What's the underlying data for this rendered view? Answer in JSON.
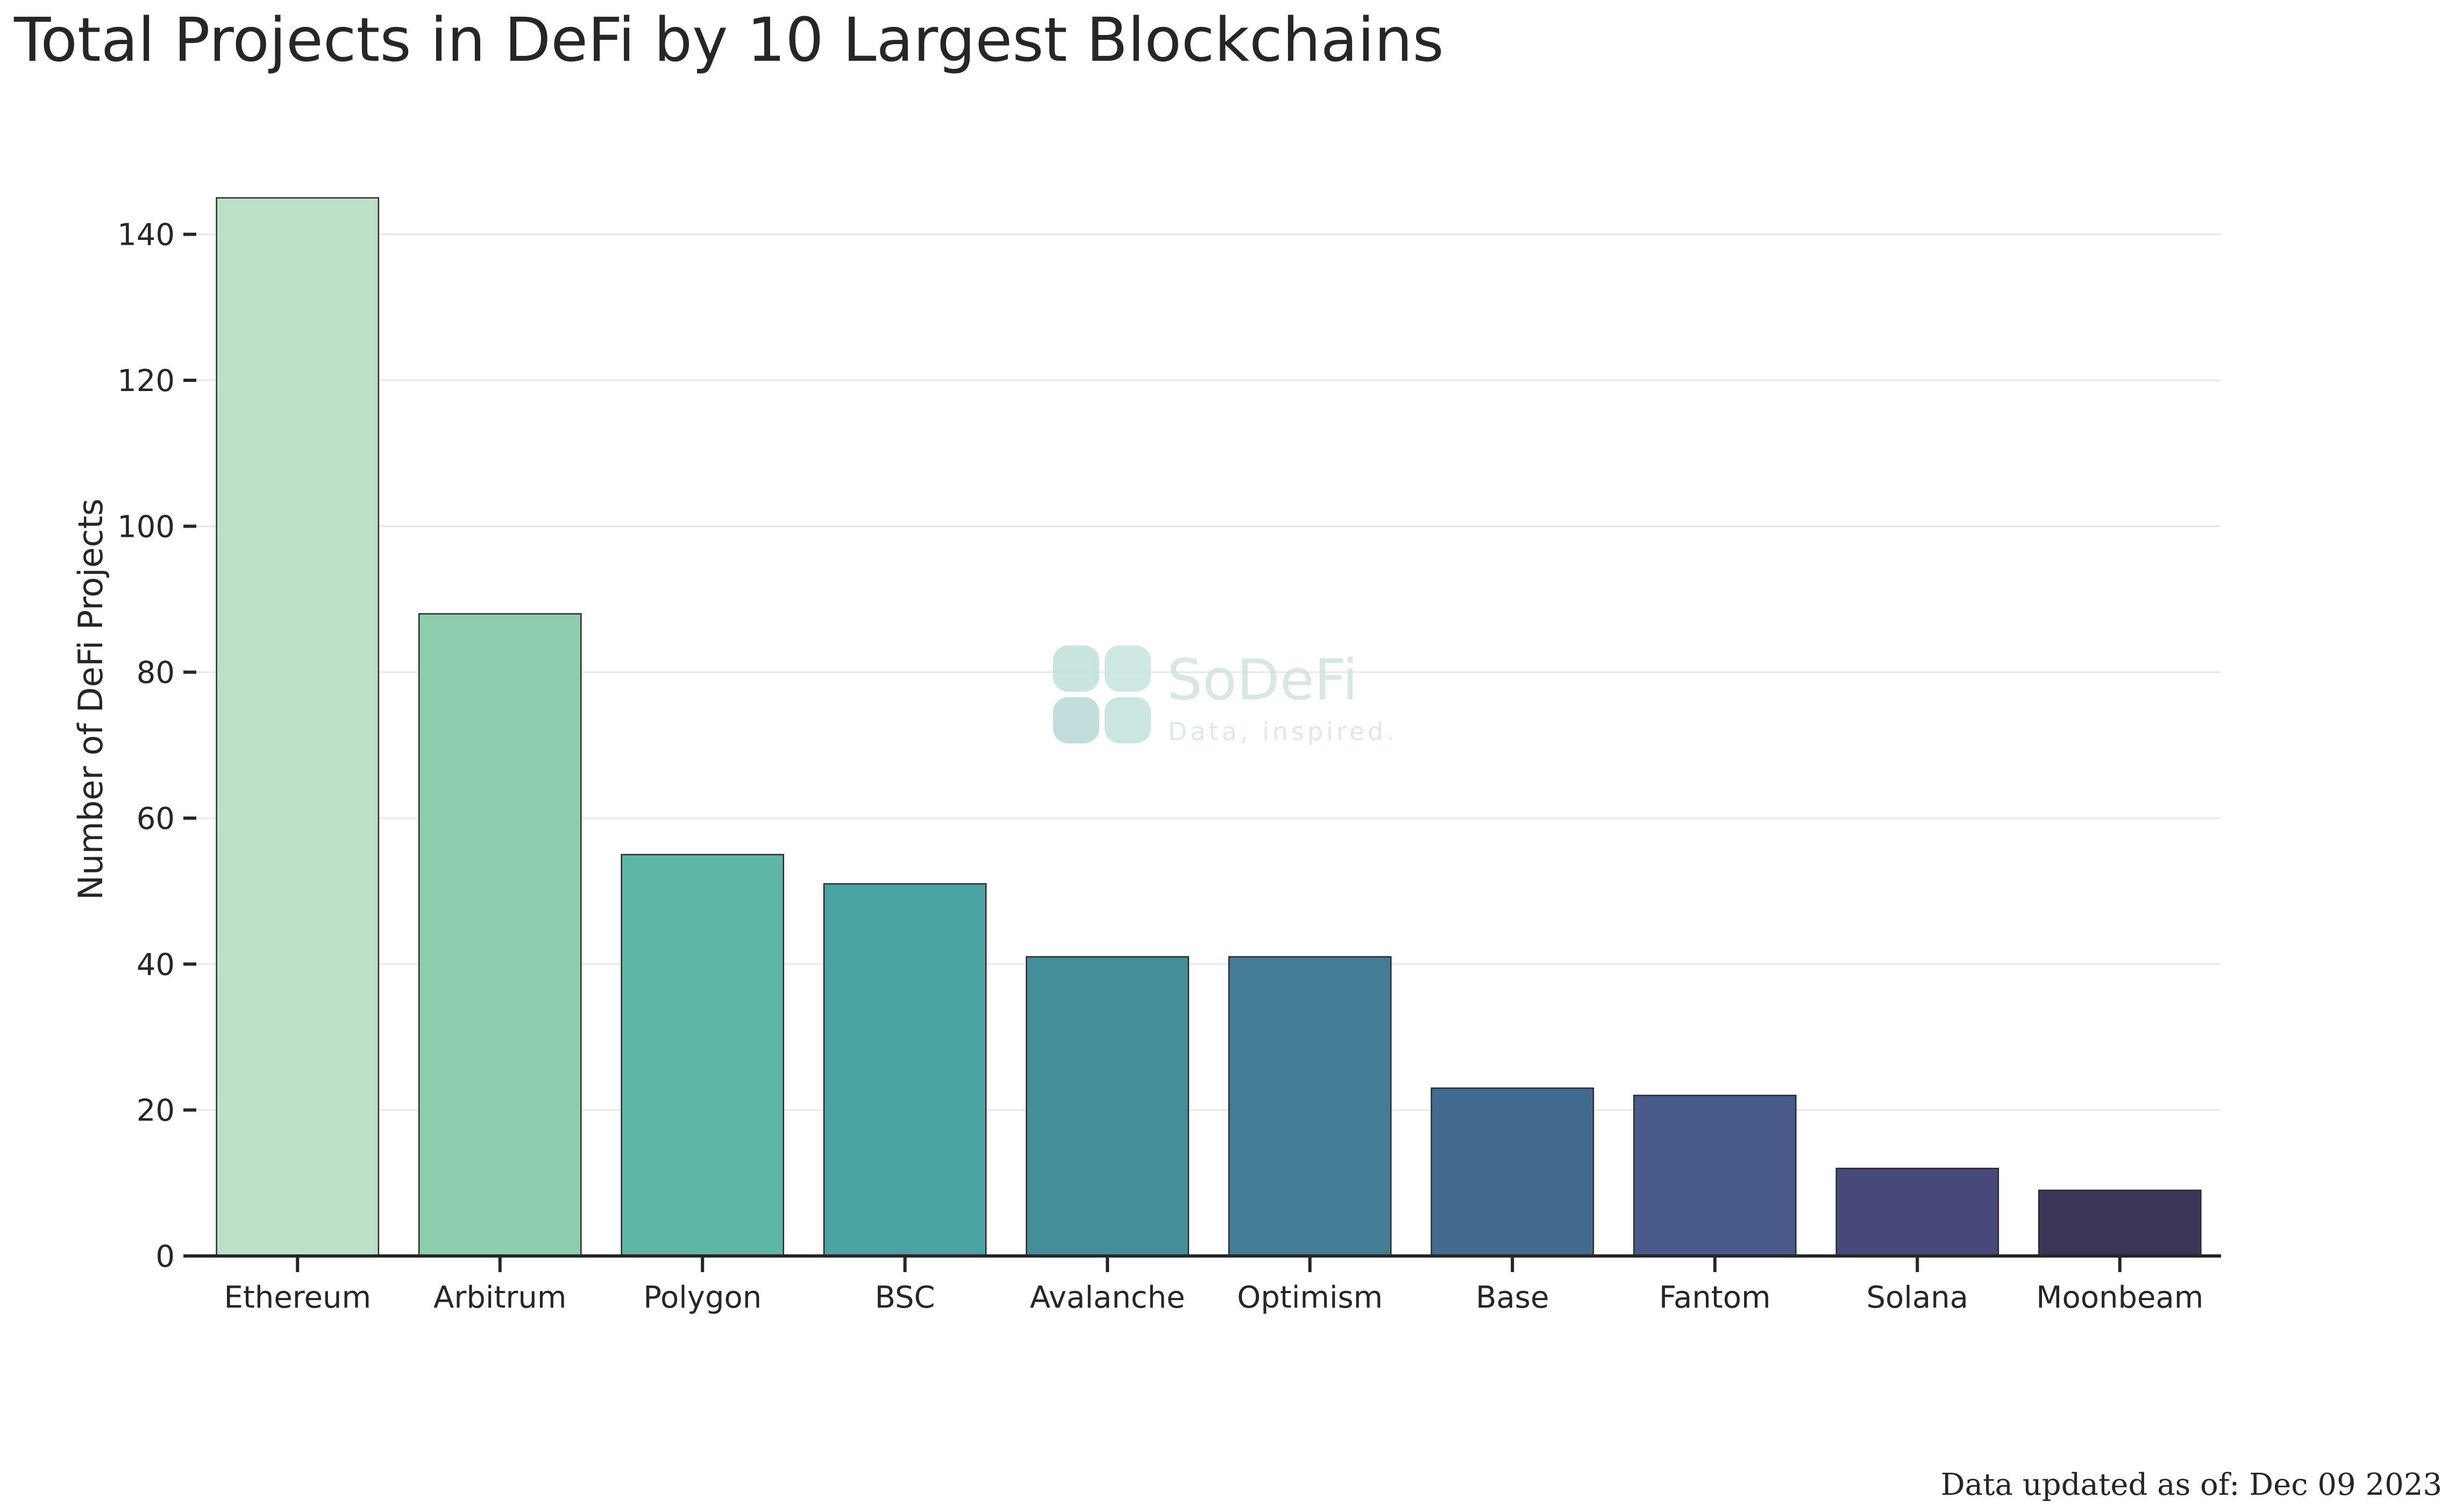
{
  "chart_data": {
    "type": "bar",
    "title": "Total Projects in DeFi by 10 Largest Blockchains",
    "xlabel": "",
    "ylabel": "Number of DeFi Projects",
    "categories": [
      "Ethereum",
      "Arbitrum",
      "Polygon",
      "BSC",
      "Avalanche",
      "Optimism",
      "Base",
      "Fantom",
      "Solana",
      "Moonbeam"
    ],
    "values": [
      145,
      88,
      55,
      51,
      41,
      41,
      23,
      22,
      12,
      9
    ],
    "colors": [
      "#bde0c8",
      "#8ecdae",
      "#60b6a5",
      "#4ba3a1",
      "#438e98",
      "#437c95",
      "#436b8f",
      "#475a8b",
      "#49487a",
      "#3d3558"
    ],
    "ylim": [
      0,
      150
    ],
    "yticks": [
      0,
      20,
      40,
      60,
      80,
      100,
      120,
      140
    ],
    "grid": true,
    "legend": "none"
  },
  "watermark": {
    "title": "SoDeFi",
    "subtitle": "Data, inspired."
  },
  "footnote": "Data updated as of: Dec 09 2023"
}
